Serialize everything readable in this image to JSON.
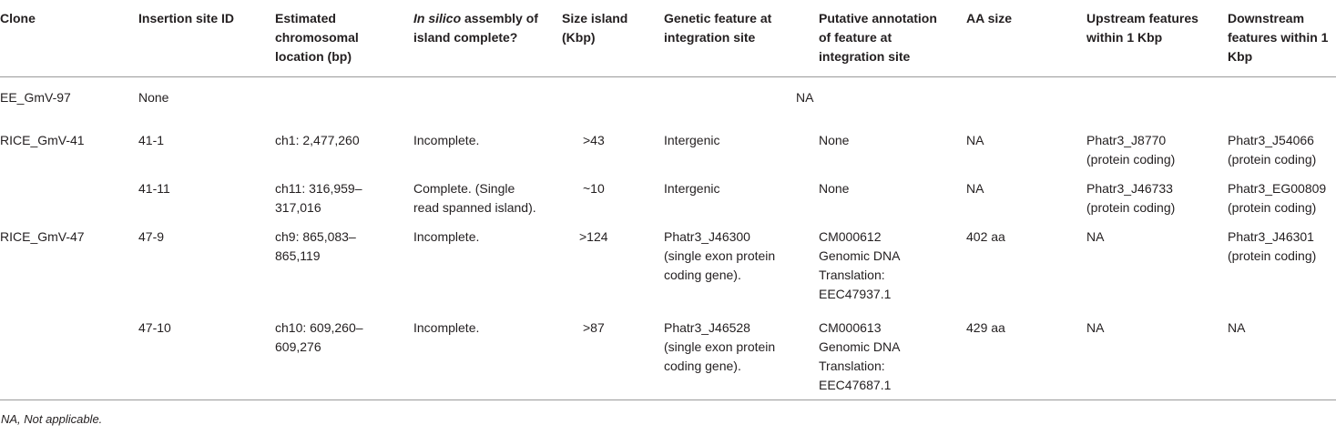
{
  "table": {
    "headers": {
      "clone": "Clone",
      "insertion_site_id": "Insertion site ID",
      "estimated_location": "Estimated chromosomal location (bp)",
      "assembly_italic": "In silico",
      "assembly_rest": "assembly of island complete?",
      "size_island": "Size island (Kbp)",
      "genetic_feature": "Genetic feature at integration site",
      "putative_annotation": "Putative annotation of feature at integration site",
      "aa_size": "AA size",
      "upstream": "Upstream features within 1 Kbp",
      "downstream": "Downstream features within 1 Kbp"
    },
    "row_ee": {
      "clone": "EE_GmV-97",
      "insertion_site_id": "None",
      "na_span": "NA"
    },
    "rows": [
      {
        "clone": "RICE_GmV-41",
        "insertion_site_id": "41-1",
        "estimated_location": "ch1: 2,477,260",
        "assembly": "Incomplete.",
        "size_island": ">43",
        "genetic_feature": "Intergenic",
        "putative_annotation": "None",
        "aa_size": "NA",
        "upstream": "Phatr3_J8770 (protein coding)",
        "downstream": "Phatr3_J54066 (protein coding)"
      },
      {
        "clone": "",
        "insertion_site_id": "41-11",
        "estimated_location": "ch11: 316,959–317,016",
        "assembly": "Complete. (Single read spanned island).",
        "size_island": "~10",
        "genetic_feature": "Intergenic",
        "putative_annotation": "None",
        "aa_size": "NA",
        "upstream": "Phatr3_J46733 (protein coding)",
        "downstream": "Phatr3_EG00809 (protein coding)"
      },
      {
        "clone": "RICE_GmV-47",
        "insertion_site_id": "47-9",
        "estimated_location": "ch9: 865,083–865,119",
        "assembly": "Incomplete.",
        "size_island": ">124",
        "genetic_feature": "Phatr3_J46300 (single exon protein coding gene).",
        "putative_annotation": "CM000612 Genomic DNA Translation: EEC47937.1",
        "aa_size": "402 aa",
        "upstream": "NA",
        "downstream": "Phatr3_J46301 (protein coding)"
      },
      {
        "clone": "",
        "insertion_site_id": "47-10",
        "estimated_location": "ch10: 609,260–609,276",
        "assembly": "Incomplete.",
        "size_island": ">87",
        "genetic_feature": "Phatr3_J46528 (single exon protein coding gene).",
        "putative_annotation": "CM000613 Genomic DNA Translation: EEC47687.1",
        "aa_size": "429 aa",
        "upstream": "NA",
        "downstream": "NA"
      }
    ]
  },
  "footnote": "NA, Not applicable."
}
